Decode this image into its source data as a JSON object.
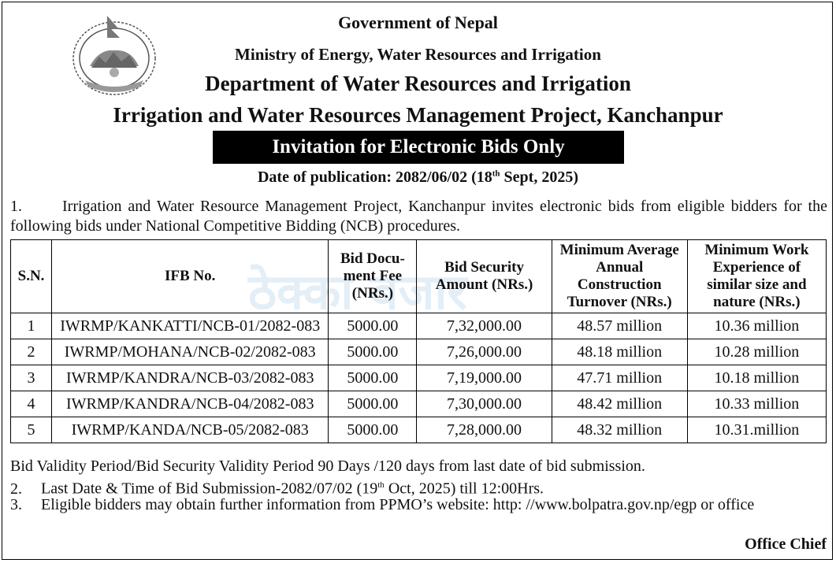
{
  "header": {
    "government": "Government of Nepal",
    "ministry": "Ministry of Energy, Water Resources and Irrigation",
    "department": "Department of Water Resources and Irrigation",
    "project": "Irrigation and Water Resources Management Project, Kanchanpur"
  },
  "banner": "Invitation for Electronic Bids Only",
  "publication": {
    "prefix": "Date of publication: 2082/06/02 (18",
    "sup": "th",
    "suffix": " Sept, 2025)"
  },
  "intro": {
    "number": "1.",
    "text": "Irrigation and Water Resource Management Project, Kanchanpur invites electronic bids from eligible bidders for the following bids under National Competitive Bidding (NCB) procedures."
  },
  "table": {
    "headers": {
      "sn": "S.N.",
      "ifb": "IFB No.",
      "fee": "Bid Docu-ment Fee (NRs.)",
      "security": "Bid Security Amount (NRs.)",
      "turnover": "Minimum Average Annual Construction Turnover (NRs.)",
      "experience": "Minimum Work Experience of similar size and nature (NRs.)"
    },
    "rows": [
      {
        "sn": "1",
        "ifb": "IWRMP/KANKATTI/NCB-01/2082-083",
        "fee": "5000.00",
        "security": "7,32,000.00",
        "turnover": "48.57 million",
        "experience": "10.36 million"
      },
      {
        "sn": "2",
        "ifb": "IWRMP/MOHANA/NCB-02/2082-083",
        "fee": "5000.00",
        "security": "7,26,000.00",
        "turnover": "48.18 million",
        "experience": "10.28 million"
      },
      {
        "sn": "3",
        "ifb": "IWRMP/KANDRA/NCB-03/2082-083",
        "fee": "5000.00",
        "security": "7,19,000.00",
        "turnover": "47.71 million",
        "experience": "10.18 million"
      },
      {
        "sn": "4",
        "ifb": "IWRMP/KANDRA/NCB-04/2082-083",
        "fee": "5000.00",
        "security": "7,30,000.00",
        "turnover": "48.42 million",
        "experience": "10.33 million"
      },
      {
        "sn": "5",
        "ifb": "IWRMP/KANDA/NCB-05/2082-083",
        "fee": "5000.00",
        "security": "7,28,000.00",
        "turnover": "48.32 million",
        "experience": "10.31.million"
      }
    ]
  },
  "watermark": {
    "text": "ठेक्का बजार",
    "color_blue": "#2f86c8",
    "color_red": "#d9342b"
  },
  "notes": {
    "validity": "Bid Validity Period/Bid Security Validity Period 90 Days /120 days from last date of bid submission.",
    "deadline": {
      "number": "2.",
      "prefix": "Last Date & Time of Bid Submission-2082/07/02 (19",
      "sup": "th",
      "suffix": " Oct, 2025) till 12:00Hrs."
    },
    "info": {
      "number": "3.",
      "text": "Eligible bidders may obtain further information from PPMO’s website: http: //www.bolpatra.gov.np/egp or office"
    }
  },
  "signature": "Office Chief",
  "emblem": {
    "icon": "nepal-emblem-icon",
    "color": "#555555"
  }
}
